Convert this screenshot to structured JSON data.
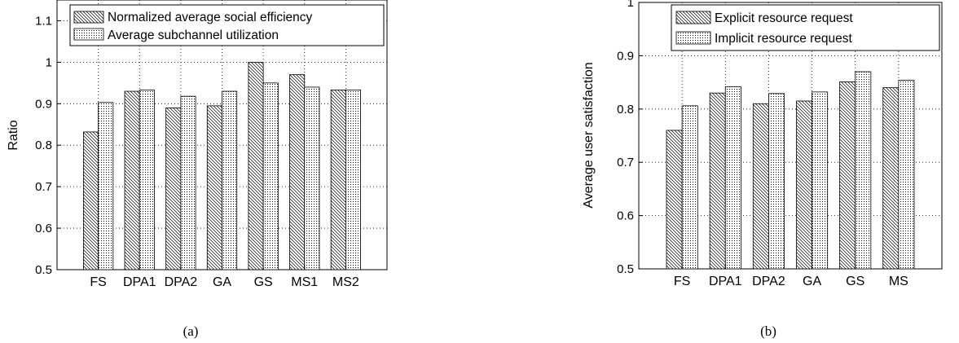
{
  "chart_data": [
    {
      "type": "bar",
      "categories": [
        "FS",
        "DPA1",
        "DPA2",
        "GA",
        "GS",
        "MS1",
        "MS2"
      ],
      "series": [
        {
          "name": "Normalized average social efficiency",
          "values": [
            0.832,
            0.93,
            0.89,
            0.895,
            1.0,
            0.97,
            0.933
          ]
        },
        {
          "name": "Average subchannel utilization",
          "values": [
            0.903,
            0.933,
            0.918,
            0.93,
            0.95,
            0.94,
            0.933
          ]
        }
      ],
      "ylabel": "Ratio",
      "xlabel": "",
      "ylim": [
        0.5,
        1.15
      ],
      "yticks": [
        "0.5",
        "0.6",
        "0.7",
        "0.8",
        "0.9",
        "1",
        "1.1"
      ],
      "grid": true,
      "legend_position": "top-right",
      "caption": "(a)"
    },
    {
      "type": "bar",
      "categories": [
        "FS",
        "DPA1",
        "DPA2",
        "GA",
        "GS",
        "MS"
      ],
      "series": [
        {
          "name": "Explicit resource request",
          "values": [
            0.76,
            0.83,
            0.81,
            0.815,
            0.851,
            0.84
          ]
        },
        {
          "name": "Implicit resource request",
          "values": [
            0.806,
            0.842,
            0.829,
            0.832,
            0.87,
            0.854
          ]
        }
      ],
      "ylabel": "Average user satisfaction",
      "xlabel": "",
      "ylim": [
        0.5,
        1.0
      ],
      "yticks": [
        "0.5",
        "0.6",
        "0.7",
        "0.8",
        "0.9",
        "1"
      ],
      "grid": true,
      "legend_position": "top-right",
      "caption": "(b)"
    }
  ],
  "colors": {
    "axis": "#000000",
    "grid": "#000000",
    "bar_fill": "#ffffff",
    "pattern": "#000000"
  }
}
